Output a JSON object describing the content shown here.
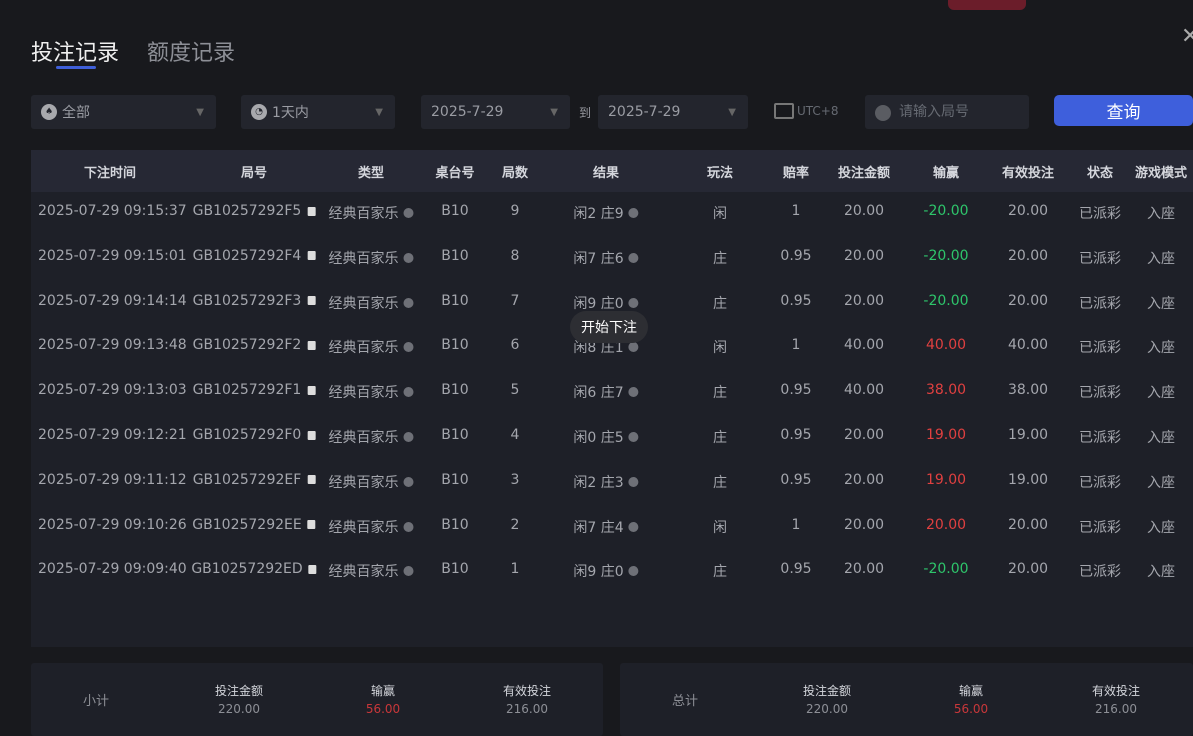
{
  "tabs": [
    {
      "label": "投注记录",
      "active": true
    },
    {
      "label": "额度记录",
      "active": false
    }
  ],
  "filters": {
    "game": "全部",
    "period": "1天内",
    "date_from": "2025-7-29",
    "to_label": "到",
    "date_to": "2025-7-29",
    "timezone": "UTC+8",
    "search_placeholder": "请输入局号",
    "query_label": "查询"
  },
  "columns": [
    "下注时间",
    "局号",
    "类型",
    "桌台号",
    "局数",
    "结果",
    "玩法",
    "赔率",
    "投注金额",
    "输赢",
    "有效投注",
    "状态",
    "游戏模式"
  ],
  "rows": [
    [
      "2025-07-29 09:15:37",
      "GB10257292F5",
      "经典百家乐",
      "B10",
      "9",
      "闲2 庄9",
      "闲",
      "1",
      "20.00",
      "-20.00",
      "20.00",
      "已派彩",
      "入座"
    ],
    [
      "2025-07-29 09:15:01",
      "GB10257292F4",
      "经典百家乐",
      "B10",
      "8",
      "闲7 庄6",
      "庄",
      "0.95",
      "20.00",
      "-20.00",
      "20.00",
      "已派彩",
      "入座"
    ],
    [
      "2025-07-29 09:14:14",
      "GB10257292F3",
      "经典百家乐",
      "B10",
      "7",
      "闲9 庄0",
      "庄",
      "0.95",
      "20.00",
      "-20.00",
      "20.00",
      "已派彩",
      "入座"
    ],
    [
      "2025-07-29 09:13:48",
      "GB10257292F2",
      "经典百家乐",
      "B10",
      "6",
      "闲8 庄1",
      "闲",
      "1",
      "40.00",
      "40.00",
      "40.00",
      "已派彩",
      "入座"
    ],
    [
      "2025-07-29 09:13:03",
      "GB10257292F1",
      "经典百家乐",
      "B10",
      "5",
      "闲6 庄7",
      "庄",
      "0.95",
      "40.00",
      "38.00",
      "38.00",
      "已派彩",
      "入座"
    ],
    [
      "2025-07-29 09:12:21",
      "GB10257292F0",
      "经典百家乐",
      "B10",
      "4",
      "闲0 庄5",
      "庄",
      "0.95",
      "20.00",
      "19.00",
      "19.00",
      "已派彩",
      "入座"
    ],
    [
      "2025-07-29 09:11:12",
      "GB10257292EF",
      "经典百家乐",
      "B10",
      "3",
      "闲2 庄3",
      "庄",
      "0.95",
      "20.00",
      "19.00",
      "19.00",
      "已派彩",
      "入座"
    ],
    [
      "2025-07-29 09:10:26",
      "GB10257292EE",
      "经典百家乐",
      "B10",
      "2",
      "闲7 庄4",
      "闲",
      "1",
      "20.00",
      "20.00",
      "20.00",
      "已派彩",
      "入座"
    ],
    [
      "2025-07-29 09:09:40",
      "GB10257292ED",
      "经典百家乐",
      "B10",
      "1",
      "闲9 庄0",
      "庄",
      "0.95",
      "20.00",
      "-20.00",
      "20.00",
      "已派彩",
      "入座"
    ]
  ],
  "tooltip": "开始下注",
  "subtotal": {
    "label": "小计",
    "bet_label": "投注金额",
    "bet": "220.00",
    "win_label": "输赢",
    "win": "56.00",
    "valid_label": "有效投注",
    "valid": "216.00"
  },
  "total": {
    "label": "总计",
    "bet_label": "投注金额",
    "bet": "220.00",
    "win_label": "输赢",
    "win": "56.00",
    "valid_label": "有效投注",
    "valid": "216.00"
  },
  "colors": {
    "accent": "#3e5fdc",
    "loss": "#2ec56b",
    "win": "#e04040"
  }
}
